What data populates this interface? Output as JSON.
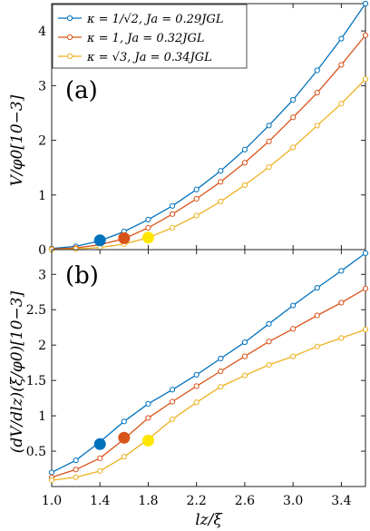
{
  "chart_data": [
    {
      "type": "line",
      "panel_label": "(a)",
      "ylabel": "V/φ0[10−3]",
      "xlim": [
        1.0,
        3.6
      ],
      "ylim": [
        0,
        4.5
      ],
      "yticks": [
        "0",
        "1",
        "2",
        "3",
        "4"
      ],
      "ytick_values": [
        0,
        1,
        2,
        3,
        4
      ],
      "legend_position": "top-left",
      "series": [
        {
          "name": "κ = 1/√2, Ja = 0.29JGL",
          "color": "#0072BD",
          "x": [
            1.0,
            1.2,
            1.4,
            1.6,
            1.8,
            2.0,
            2.2,
            2.4,
            2.6,
            2.8,
            3.0,
            3.2,
            3.4,
            3.6
          ],
          "y": [
            0.02,
            0.06,
            0.16,
            0.33,
            0.55,
            0.8,
            1.1,
            1.44,
            1.83,
            2.27,
            2.74,
            3.28,
            3.86,
            4.5
          ],
          "marker": {
            "x": 1.4,
            "y": 0.17
          }
        },
        {
          "name": "κ = 1, Ja = 0.32JGL",
          "color": "#D95319",
          "x": [
            1.0,
            1.2,
            1.4,
            1.6,
            1.8,
            2.0,
            2.2,
            2.4,
            2.6,
            2.8,
            3.0,
            3.2,
            3.4,
            3.6
          ],
          "y": [
            0.01,
            0.03,
            0.09,
            0.2,
            0.4,
            0.65,
            0.93,
            1.24,
            1.59,
            1.98,
            2.42,
            2.87,
            3.38,
            3.92
          ],
          "marker": {
            "x": 1.6,
            "y": 0.21
          }
        },
        {
          "name": "κ = √3, Ja = 0.34JGL",
          "color": "#EDB120",
          "x": [
            1.0,
            1.2,
            1.4,
            1.6,
            1.8,
            2.0,
            2.2,
            2.4,
            2.6,
            2.8,
            3.0,
            3.2,
            3.4,
            3.6
          ],
          "y": [
            0.0,
            0.01,
            0.04,
            0.1,
            0.22,
            0.4,
            0.62,
            0.88,
            1.18,
            1.51,
            1.87,
            2.27,
            2.67,
            3.12
          ],
          "marker": {
            "x": 1.8,
            "y": 0.22
          }
        }
      ]
    },
    {
      "type": "line",
      "panel_label": "(b)",
      "ylabel": "(dV/dlz)(ξ/φ0)[10−3]",
      "xlabel": "lz/ξ",
      "xlim": [
        1.0,
        3.6
      ],
      "ylim": [
        0,
        3.35
      ],
      "xticks": [
        "1.0",
        "1.4",
        "1.8",
        "2.2",
        "2.6",
        "3.0",
        "3.4"
      ],
      "xtick_values": [
        1.0,
        1.4,
        1.8,
        2.2,
        2.6,
        3.0,
        3.4
      ],
      "yticks": [
        "0.5",
        "1",
        "1.5",
        "2",
        "2.5",
        "3"
      ],
      "ytick_values": [
        0.5,
        1,
        1.5,
        2,
        2.5,
        3
      ],
      "series": [
        {
          "name": "κ = 1/√2, Ja = 0.29JGL",
          "color": "#0072BD",
          "x": [
            1.0,
            1.2,
            1.4,
            1.6,
            1.8,
            2.0,
            2.2,
            2.4,
            2.6,
            2.8,
            3.0,
            3.2,
            3.4,
            3.6
          ],
          "y": [
            0.2,
            0.37,
            0.63,
            0.92,
            1.17,
            1.37,
            1.58,
            1.81,
            2.04,
            2.3,
            2.56,
            2.81,
            3.05,
            3.3
          ],
          "marker": {
            "x": 1.4,
            "y": 0.6
          }
        },
        {
          "name": "κ = 1, Ja = 0.32JGL",
          "color": "#D95319",
          "x": [
            1.0,
            1.2,
            1.4,
            1.6,
            1.8,
            2.0,
            2.2,
            2.4,
            2.6,
            2.8,
            3.0,
            3.2,
            3.4,
            3.6
          ],
          "y": [
            0.13,
            0.24,
            0.4,
            0.67,
            0.97,
            1.2,
            1.42,
            1.63,
            1.84,
            2.05,
            2.23,
            2.42,
            2.6,
            2.8
          ],
          "marker": {
            "x": 1.6,
            "y": 0.69
          }
        },
        {
          "name": "κ = √3, Ja = 0.34JGL",
          "color": "#EDB120",
          "x": [
            1.0,
            1.2,
            1.4,
            1.6,
            1.8,
            2.0,
            2.2,
            2.4,
            2.6,
            2.8,
            3.0,
            3.2,
            3.4,
            3.6
          ],
          "y": [
            0.09,
            0.13,
            0.22,
            0.42,
            0.67,
            0.95,
            1.19,
            1.41,
            1.57,
            1.72,
            1.84,
            1.98,
            2.1,
            2.22
          ],
          "marker": {
            "x": 1.8,
            "y": 0.65
          }
        }
      ]
    }
  ]
}
